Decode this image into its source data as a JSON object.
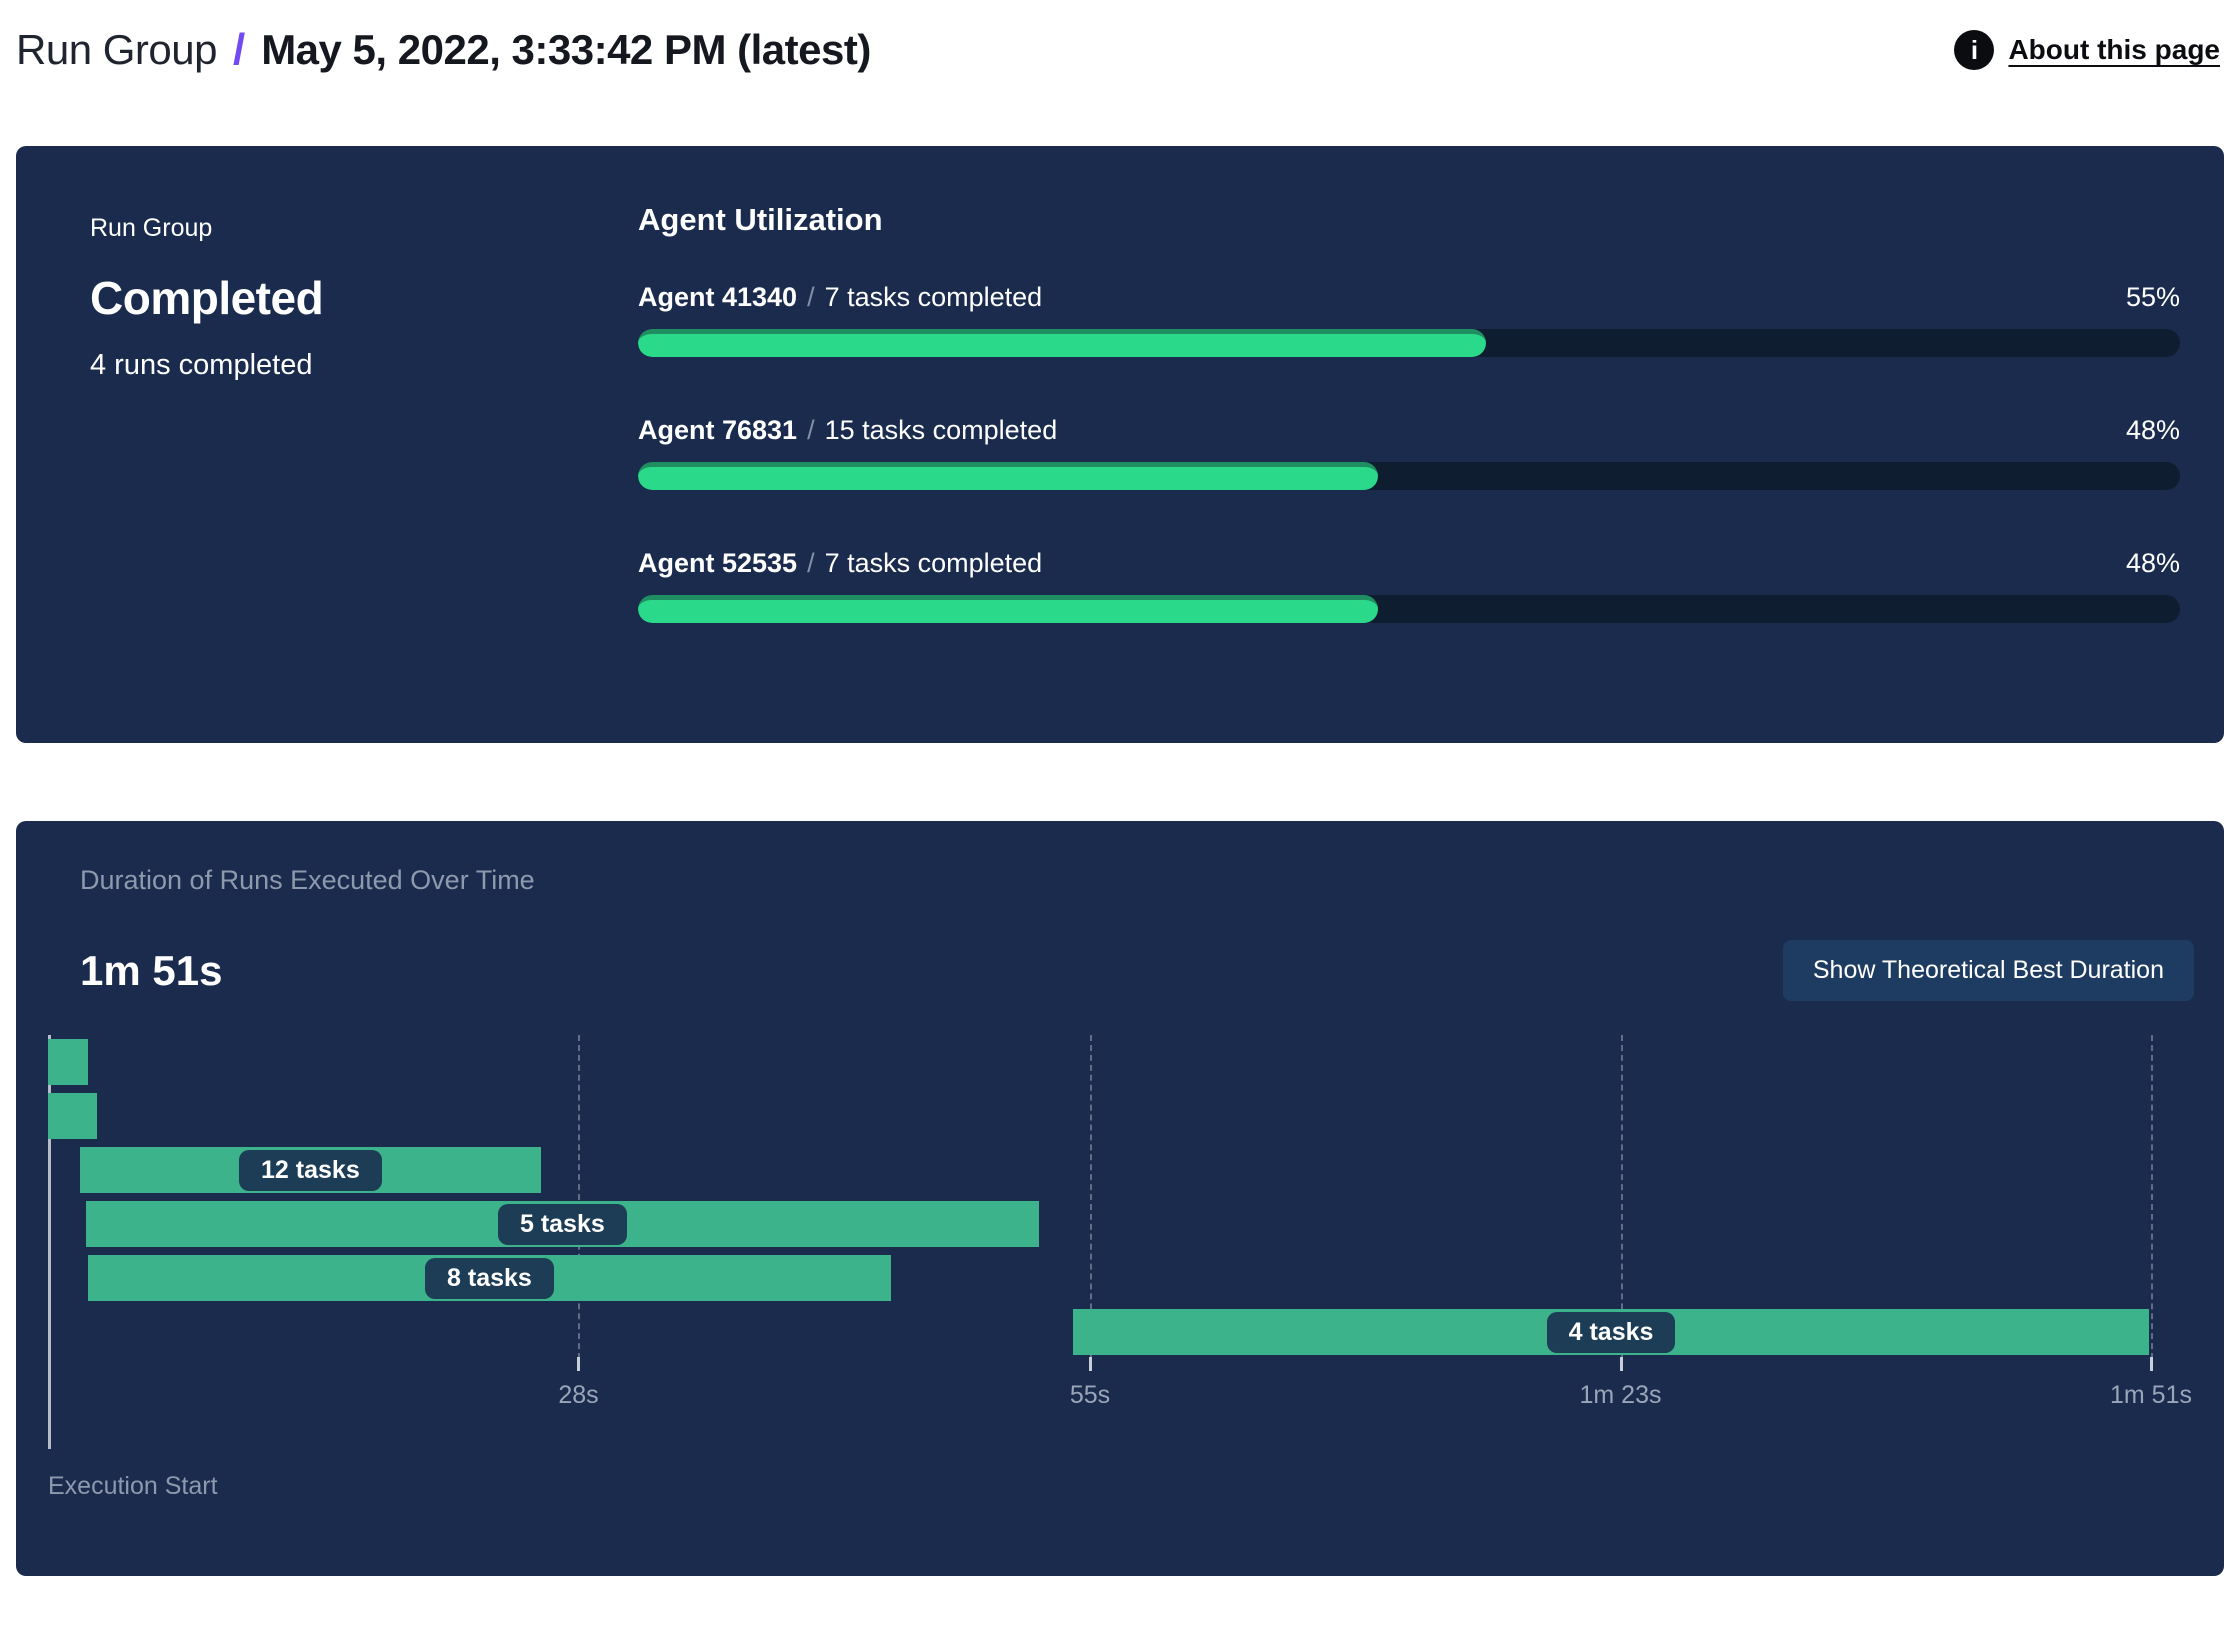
{
  "header": {
    "breadcrumb_root": "Run Group",
    "separator": "/",
    "title": "May 5, 2022, 3:33:42 PM (latest)",
    "info_glyph": "i",
    "about_link": "About this page"
  },
  "colors": {
    "accent_purple": "#7349f2",
    "panel_bg": "#1a2b4d",
    "progress_track": "#0f1d31",
    "progress_fill": "#2bd98a",
    "progress_fill_edge": "#1f8e60",
    "gantt_bar": "#3cb38b",
    "pill_bg": "#1d3c55",
    "button_bg": "#1e3c61",
    "muted_text": "#8e99ad"
  },
  "status_panel": {
    "label": "Run Group",
    "status": "Completed",
    "subtitle": "4 runs completed",
    "utilization_title": "Agent Utilization",
    "agent_separator": "/",
    "agents": [
      {
        "name": "Agent 41340",
        "tasks": "7 tasks completed",
        "percent": 55,
        "percent_label": "55%"
      },
      {
        "name": "Agent 76831",
        "tasks": "15 tasks completed",
        "percent": 48,
        "percent_label": "48%"
      },
      {
        "name": "Agent 52535",
        "tasks": "7 tasks completed",
        "percent": 48,
        "percent_label": "48%"
      }
    ]
  },
  "duration_panel": {
    "title": "Duration of Runs Executed Over Time",
    "total": "1m 51s",
    "button": "Show Theoretical Best Duration",
    "axis_label": "Execution Start"
  },
  "chart_data": [
    {
      "type": "bar",
      "title": "Agent Utilization",
      "categories": [
        "Agent 41340",
        "Agent 76831",
        "Agent 52535"
      ],
      "values": [
        55,
        48,
        48
      ],
      "value_suffix": "%",
      "xlim": [
        0,
        100
      ],
      "orientation": "horizontal",
      "legend": "none"
    },
    {
      "type": "gantt",
      "title": "Duration of Runs Executed Over Time",
      "total_duration": "1m 51s",
      "xlabel": "Execution Start",
      "time_axis": {
        "start_s": 0,
        "end_s": 111,
        "ticks": [
          {
            "label": "28s",
            "s": 28
          },
          {
            "label": "55s",
            "s": 55
          },
          {
            "label": "1m 23s",
            "s": 83
          },
          {
            "label": "1m 51s",
            "s": 111
          }
        ]
      },
      "runs": [
        {
          "row": 0,
          "start_s": 0,
          "end_s": 2.1,
          "label": ""
        },
        {
          "row": 1,
          "start_s": 0,
          "end_s": 2.6,
          "label": ""
        },
        {
          "row": 2,
          "start_s": 1.7,
          "end_s": 26.0,
          "label": "12 tasks"
        },
        {
          "row": 3,
          "start_s": 2.0,
          "end_s": 52.3,
          "label": "5 tasks"
        },
        {
          "row": 4,
          "start_s": 2.1,
          "end_s": 44.5,
          "label": "8 tasks"
        },
        {
          "row": 5,
          "start_s": 54.1,
          "end_s": 110.9,
          "label": "4 tasks"
        }
      ]
    }
  ]
}
